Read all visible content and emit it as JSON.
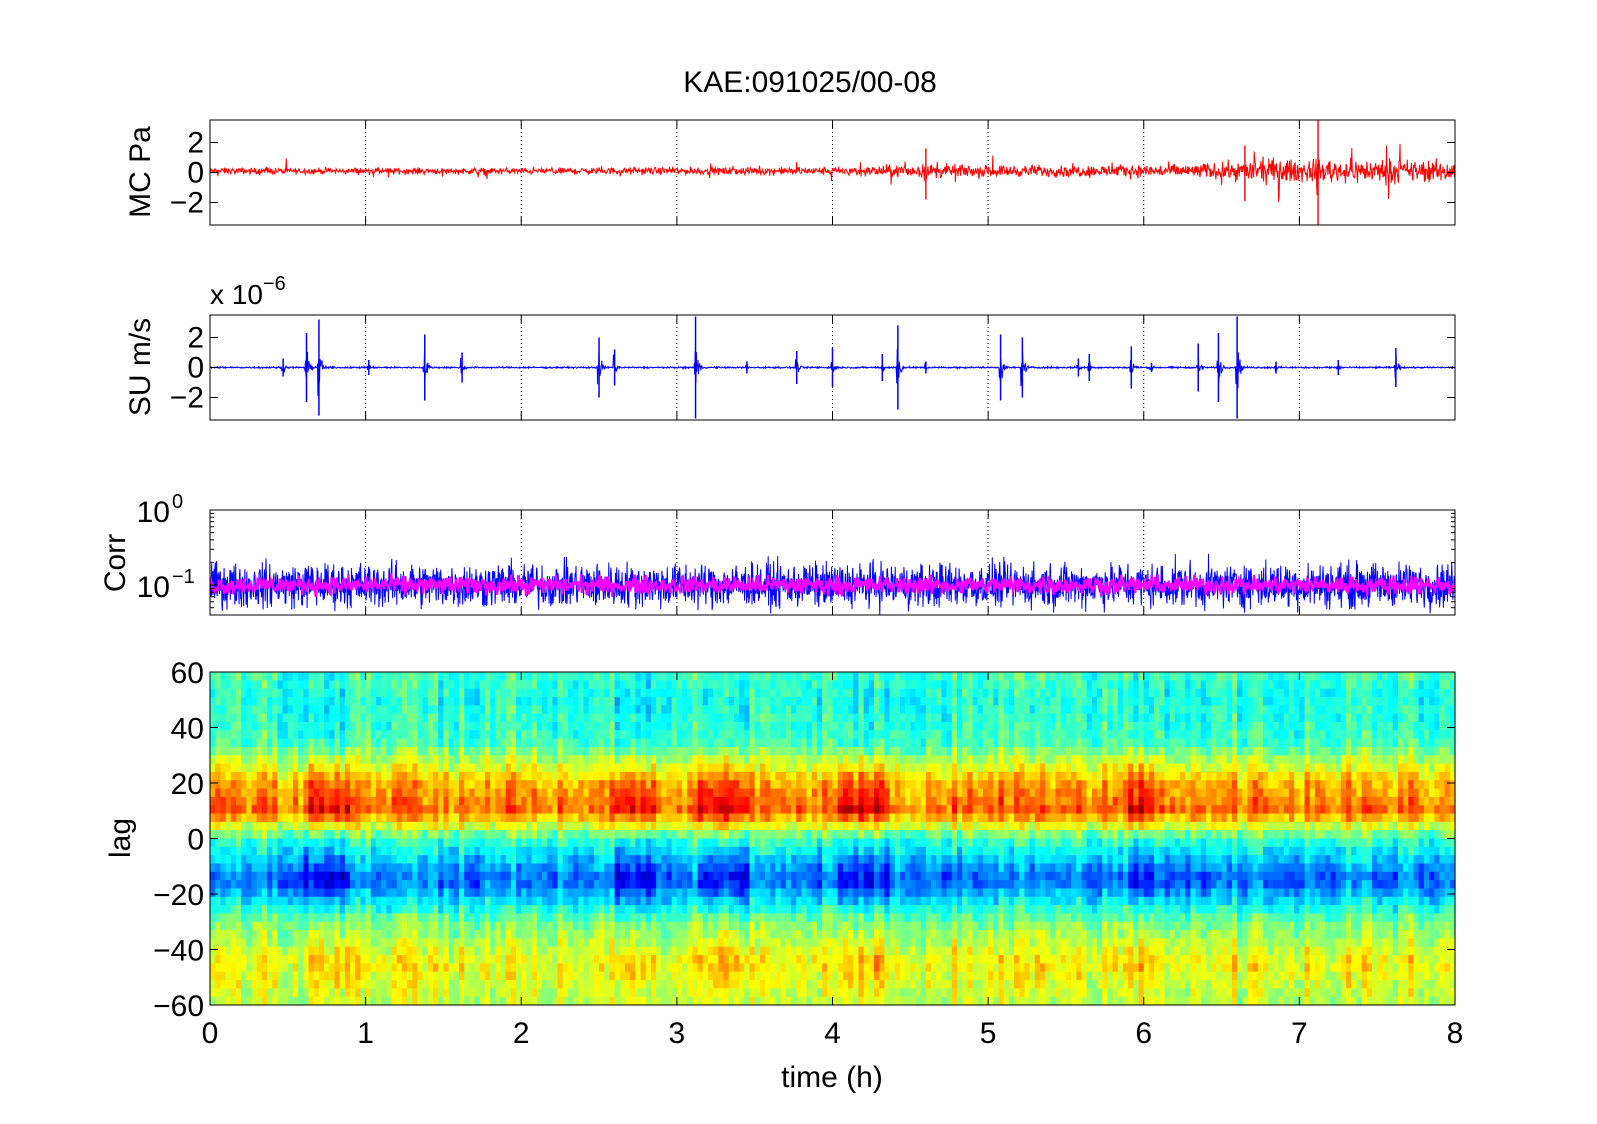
{
  "title": "KAE:091025/00-08",
  "colors": {
    "mc": "#ff0000",
    "su": "#0000ff",
    "corr_raw": "#0000ff",
    "corr_smooth": "#ff00ff",
    "frame": "#000000"
  },
  "chart_data": [
    {
      "type": "line",
      "ylabel": "MC Pa",
      "xlim": [
        0,
        8
      ],
      "ylim": [
        -3.5,
        3.5
      ],
      "yticks": [
        {
          "v": 2,
          "label": "2"
        },
        {
          "v": 0,
          "label": "0"
        },
        {
          "v": -2,
          "label": "−2"
        }
      ],
      "grid": "x-dotted",
      "series": [
        {
          "color": "#ff0000",
          "baseline": 0.1,
          "noise_envelope": [
            [
              0,
              0.4
            ],
            [
              2,
              0.4
            ],
            [
              4,
              0.5
            ],
            [
              4.6,
              0.9
            ],
            [
              5,
              0.7
            ],
            [
              6,
              0.8
            ],
            [
              6.5,
              1.0
            ],
            [
              6.8,
              1.6
            ],
            [
              7,
              1.4
            ],
            [
              7.5,
              1.5
            ],
            [
              8,
              1.3
            ]
          ],
          "spikes": [
            {
              "x": 7.12,
              "y": [
                -3.5,
                3.5
              ]
            },
            {
              "x": 4.6,
              "y": [
                -1.8,
                1.6
              ]
            },
            {
              "x": 6.65,
              "y": [
                -1.9,
                1.8
              ]
            }
          ]
        }
      ]
    },
    {
      "type": "line",
      "ylabel": "SU m/s",
      "exponent": "x 10",
      "exponent_power": "−6",
      "xlim": [
        0,
        8
      ],
      "ylim": [
        -3.5,
        3.5
      ],
      "yticks": [
        {
          "v": 2,
          "label": "2"
        },
        {
          "v": 0,
          "label": "0"
        },
        {
          "v": -2,
          "label": "−2"
        }
      ],
      "grid": "x-dotted",
      "series": [
        {
          "color": "#0000ff",
          "baseline": 0,
          "events": [
            {
              "x": 0.47,
              "a": 0.6
            },
            {
              "x": 0.62,
              "a": 2.3
            },
            {
              "x": 0.7,
              "a": 3.2
            },
            {
              "x": 1.02,
              "a": 0.5
            },
            {
              "x": 1.38,
              "a": 2.2
            },
            {
              "x": 1.62,
              "a": 1.0
            },
            {
              "x": 2.5,
              "a": 2.0
            },
            {
              "x": 2.6,
              "a": 1.2
            },
            {
              "x": 3.12,
              "a": 3.4
            },
            {
              "x": 3.45,
              "a": 0.4
            },
            {
              "x": 3.77,
              "a": 1.1
            },
            {
              "x": 4.0,
              "a": 1.3
            },
            {
              "x": 4.32,
              "a": 0.9
            },
            {
              "x": 4.42,
              "a": 2.8
            },
            {
              "x": 4.6,
              "a": 0.4
            },
            {
              "x": 5.08,
              "a": 2.2
            },
            {
              "x": 5.22,
              "a": 2.0
            },
            {
              "x": 5.58,
              "a": 0.6
            },
            {
              "x": 5.65,
              "a": 0.9
            },
            {
              "x": 5.92,
              "a": 1.4
            },
            {
              "x": 6.05,
              "a": 0.3
            },
            {
              "x": 6.35,
              "a": 1.6
            },
            {
              "x": 6.48,
              "a": 2.3
            },
            {
              "x": 6.6,
              "a": 3.4
            },
            {
              "x": 6.85,
              "a": 0.4
            },
            {
              "x": 7.25,
              "a": 0.5
            },
            {
              "x": 7.62,
              "a": 1.3
            }
          ]
        }
      ]
    },
    {
      "type": "line",
      "ylabel": "Corr",
      "yscale": "log",
      "xlim": [
        0,
        8
      ],
      "ylim": [
        0.04,
        1
      ],
      "yticks": [
        {
          "v": 1,
          "label": "10",
          "power": "0"
        },
        {
          "v": 0.1,
          "label": "10",
          "power": "−1"
        }
      ],
      "grid": "x-dotted",
      "series": [
        {
          "name": "",
          "color": "#0000ff",
          "level": 0.1,
          "spread": 0.5
        },
        {
          "name": "",
          "color": "#ff00ff",
          "level": 0.1,
          "spread": 0.2
        }
      ]
    },
    {
      "type": "heatmap",
      "ylabel": "lag",
      "xlabel": "time (h)",
      "xlim": [
        0,
        8
      ],
      "ylim": [
        -60,
        60
      ],
      "yticks": [
        60,
        40,
        20,
        0,
        -20,
        -40,
        -60
      ],
      "xticks": [
        0,
        1,
        2,
        3,
        4,
        5,
        6,
        7,
        8
      ],
      "colormap": "jet",
      "lag_profile": [
        [
          -60,
          0.55
        ],
        [
          -45,
          0.62
        ],
        [
          -30,
          0.5
        ],
        [
          -15,
          0.25
        ],
        [
          0,
          0.45
        ],
        [
          10,
          0.75
        ],
        [
          20,
          0.68
        ],
        [
          35,
          0.45
        ],
        [
          50,
          0.42
        ],
        [
          60,
          0.45
        ]
      ],
      "strong_intervals": [
        [
          0.6,
          0.9
        ],
        [
          2.6,
          2.85
        ],
        [
          3.15,
          3.45
        ],
        [
          4.05,
          4.35
        ],
        [
          5.9,
          6.05
        ]
      ]
    }
  ]
}
